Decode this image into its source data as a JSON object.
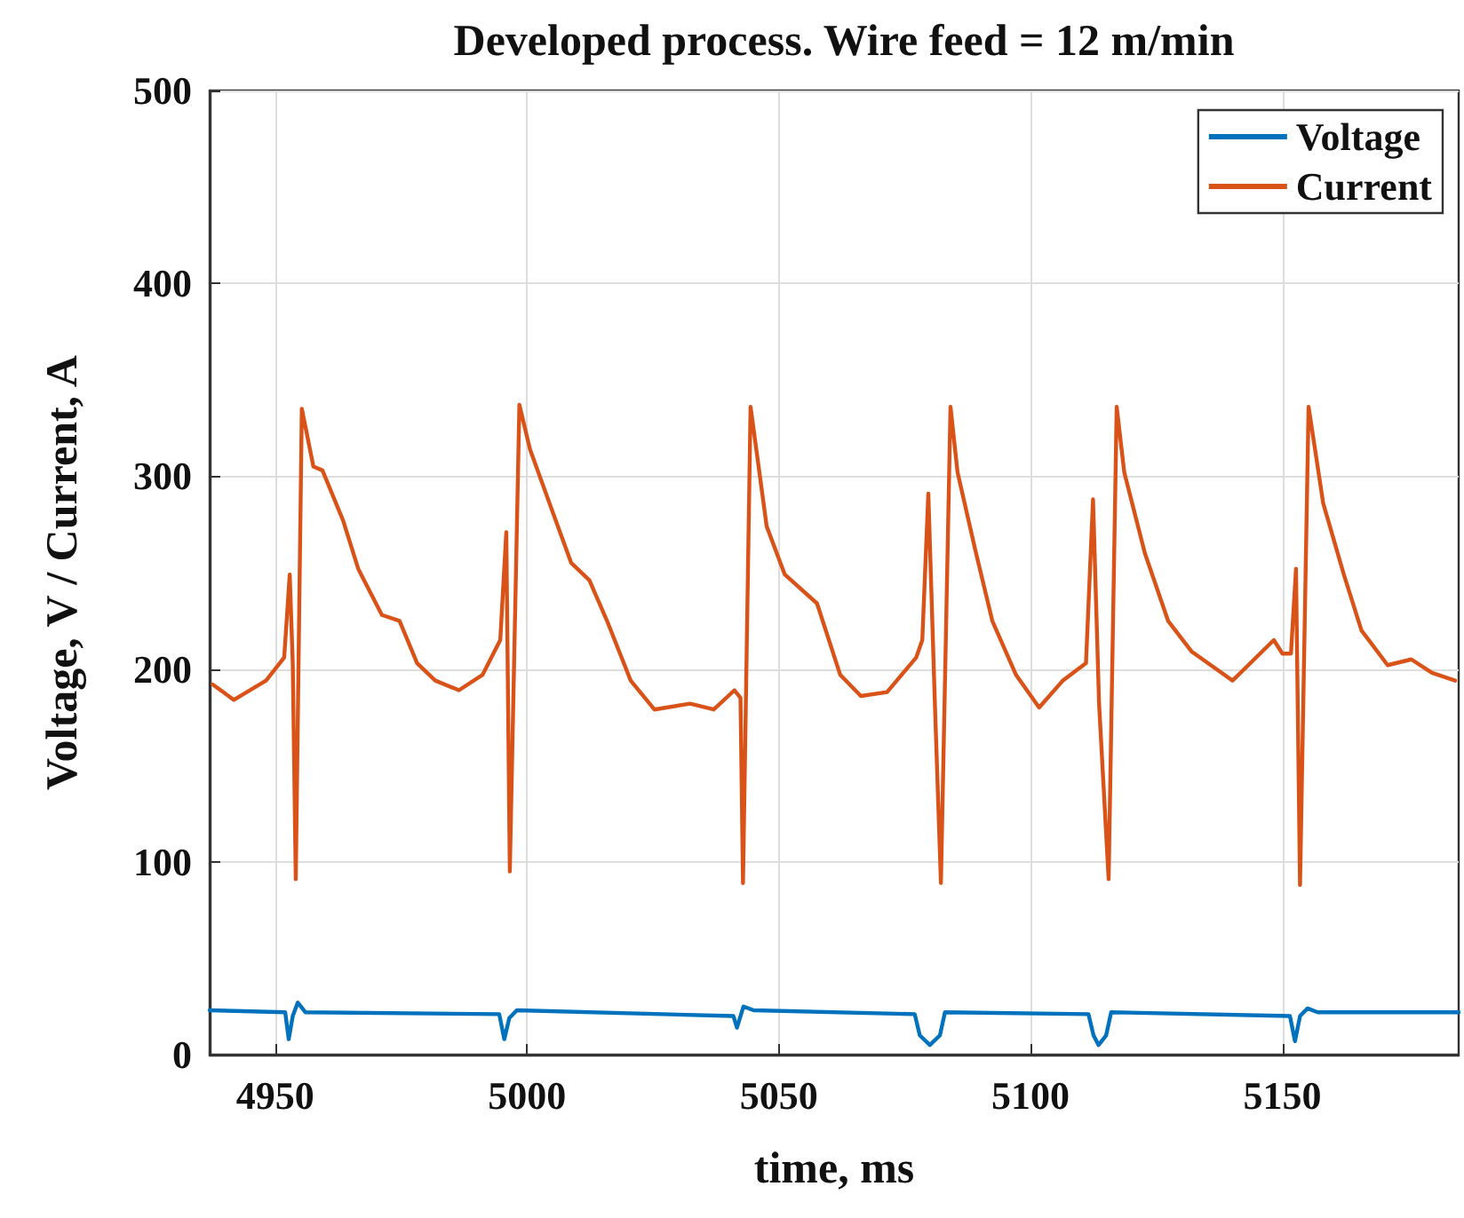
{
  "chart_data": {
    "type": "line",
    "title": "Developed process. Wire feed = 12 m/min",
    "xlabel": "time, ms",
    "ylabel": "Voltage, V / Current, A",
    "xlim": [
      4937,
      5185
    ],
    "ylim": [
      0,
      500
    ],
    "xticks": [
      4950,
      5000,
      5050,
      5100,
      5150
    ],
    "yticks": [
      0,
      100,
      200,
      300,
      400,
      500
    ],
    "grid": true,
    "legend": "top right",
    "marker": "none",
    "line_style": "solid",
    "series": [
      {
        "name": "Voltage",
        "color": "#0072bd",
        "x": [
          4937,
          4952,
          4952.7,
          4953.5,
          4954.5,
          4956,
          4994.5,
          4995.5,
          4996.5,
          4998,
          5041,
          5041.7,
          5043,
          5045,
          5077,
          5078,
          5080,
          5082,
          5083,
          5111.5,
          5112.5,
          5113.5,
          5115,
          5116,
          5151.5,
          5152.5,
          5153.5,
          5155,
          5157,
          5185
        ],
        "values": [
          23,
          22,
          8,
          20,
          27,
          22,
          21,
          8,
          19,
          23,
          20,
          14,
          25,
          23,
          21,
          10,
          5,
          10,
          22,
          21,
          10,
          5,
          10,
          22,
          20,
          7,
          20,
          24,
          22,
          22
        ]
      },
      {
        "name": "Current",
        "color": "#d95319",
        "x": [
          4937.6,
          4941.8,
          4948.2,
          4951.8,
          4952.9,
          4953.5,
          4954.1,
          4955.3,
          4957.6,
          4959.4,
          4963.5,
          4966.5,
          4971.2,
          4974.7,
          4978.2,
          4981.8,
          4986.5,
          4991.2,
          4994.7,
          4995.9,
          4996.6,
          4998.5,
          5000.6,
          5005.3,
          5008.8,
          5012.4,
          5015.9,
          5020.6,
          5025.3,
          5032.4,
          5037.1,
          5041.2,
          5042.4,
          5042.9,
          5044.4,
          5047.6,
          5051.2,
          5057.6,
          5062.2,
          5066.3,
          5071.5,
          5077.3,
          5078.5,
          5079.7,
          5081,
          5082.2,
          5084.1,
          5085.5,
          5089,
          5092.4,
          5097.1,
          5101.7,
          5106.4,
          5111,
          5112.4,
          5113.6,
          5115.5,
          5117.1,
          5118.6,
          5122.7,
          5127.3,
          5132,
          5140.1,
          5148.3,
          5150,
          5151.7,
          5152.7,
          5153.5,
          5155.2,
          5158.1,
          5162.2,
          5165.7,
          5170.9,
          5175.6,
          5179.7,
          5184.3
        ],
        "values": [
          192,
          184,
          194,
          206,
          249,
          203,
          91,
          335,
          305,
          303,
          277,
          252,
          228,
          225,
          203,
          194,
          189,
          197,
          215,
          271,
          95,
          337,
          314,
          280,
          255,
          246,
          225,
          194,
          179,
          182,
          179,
          189,
          185,
          89,
          336,
          274,
          249,
          234,
          197,
          186,
          188,
          206,
          215,
          291,
          182,
          89,
          336,
          302,
          262,
          225,
          197,
          180,
          194,
          203,
          288,
          182,
          91,
          336,
          302,
          260,
          225,
          209,
          194,
          215,
          208,
          208,
          252,
          88,
          336,
          286,
          249,
          220,
          202,
          205,
          198,
          194
        ]
      }
    ]
  }
}
